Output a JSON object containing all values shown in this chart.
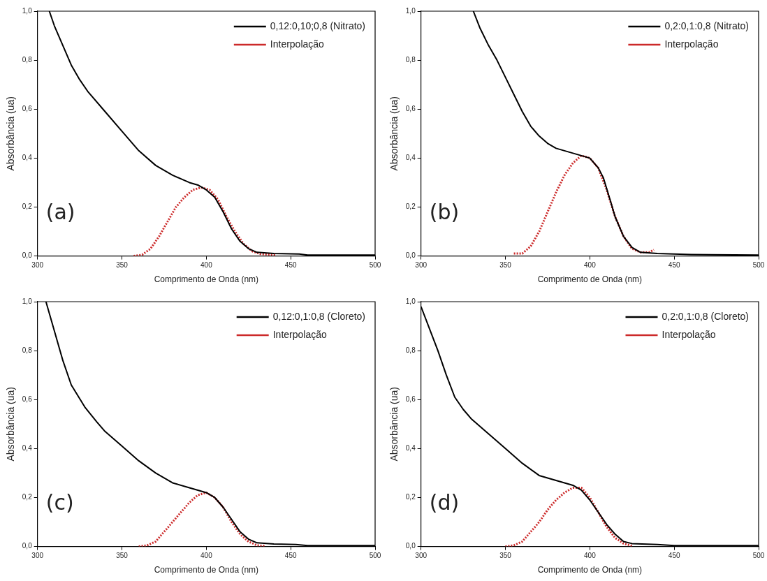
{
  "chart_data": [
    {
      "type": "line",
      "xlabel": "Comprimento de Onda (nm)",
      "ylabel": "Absorbância (ua)",
      "annotations": [
        "(a)"
      ],
      "xlim": [
        300,
        500
      ],
      "xticks": [
        300,
        350,
        400,
        450,
        500
      ],
      "ylim": [
        0,
        1
      ],
      "yticks": [
        {
          "value": 0,
          "label": "0,0"
        },
        {
          "value": 0.2,
          "label": "0,2"
        },
        {
          "value": 0.4,
          "label": "0,4"
        },
        {
          "value": 0.6,
          "label": "0,6"
        },
        {
          "value": 0.8,
          "label": "0,8"
        },
        {
          "value": 1,
          "label": "1,0"
        }
      ],
      "legend": "top right",
      "grid": false,
      "marker": "none",
      "series": [
        {
          "name": "0,12:0,10;0,8 (Nitrato)",
          "color": "#000000",
          "line_style": "solid",
          "x": [
            307,
            310,
            315,
            320,
            325,
            330,
            340,
            350,
            360,
            370,
            380,
            390,
            395,
            400,
            405,
            410,
            415,
            420,
            425,
            430,
            440,
            455,
            460,
            500
          ],
          "values": [
            1.0,
            0.94,
            0.86,
            0.78,
            0.72,
            0.67,
            0.59,
            0.51,
            0.43,
            0.37,
            0.33,
            0.3,
            0.29,
            0.27,
            0.24,
            0.18,
            0.11,
            0.06,
            0.03,
            0.015,
            0.01,
            0.008,
            0.004,
            0.004
          ]
        },
        {
          "name": "Interpolação",
          "color": "#cc2a2a",
          "line_style": "dotted",
          "x": [
            357,
            362,
            367,
            372,
            377,
            382,
            387,
            392,
            397,
            402,
            407,
            412,
            417,
            422,
            427,
            432,
            441
          ],
          "values": [
            0,
            0.005,
            0.03,
            0.08,
            0.14,
            0.2,
            0.24,
            0.27,
            0.28,
            0.27,
            0.23,
            0.16,
            0.1,
            0.05,
            0.02,
            0.008,
            0.005
          ]
        }
      ]
    },
    {
      "type": "line",
      "xlabel": "Comprimento de Onda (nm)",
      "ylabel": "Absorbância (ua)",
      "annotations": [
        "(b)"
      ],
      "xlim": [
        300,
        500
      ],
      "xticks": [
        300,
        350,
        400,
        450,
        500
      ],
      "ylim": [
        0,
        1
      ],
      "yticks": [
        {
          "value": 0,
          "label": "0,0"
        },
        {
          "value": 0.2,
          "label": "0,2"
        },
        {
          "value": 0.4,
          "label": "0,4"
        },
        {
          "value": 0.6,
          "label": "0,6"
        },
        {
          "value": 0.8,
          "label": "0,8"
        },
        {
          "value": 1,
          "label": "1,0"
        }
      ],
      "legend": "top right",
      "grid": false,
      "marker": "none",
      "series": [
        {
          "name": "0,2:0,1:0,8 (Nitrato)",
          "color": "#000000",
          "line_style": "solid",
          "x": [
            331,
            335,
            340,
            345,
            350,
            355,
            360,
            365,
            370,
            375,
            380,
            390,
            395,
            400,
            405,
            408,
            412,
            415,
            420,
            425,
            430,
            440,
            460,
            500
          ],
          "values": [
            1.0,
            0.93,
            0.86,
            0.8,
            0.73,
            0.66,
            0.59,
            0.53,
            0.49,
            0.46,
            0.44,
            0.42,
            0.41,
            0.4,
            0.36,
            0.32,
            0.23,
            0.16,
            0.08,
            0.035,
            0.015,
            0.01,
            0.006,
            0.004
          ]
        },
        {
          "name": "Interpolação",
          "color": "#cc2a2a",
          "line_style": "dotted",
          "x": [
            355,
            360,
            365,
            370,
            375,
            380,
            385,
            390,
            395,
            400,
            405,
            410,
            415,
            420,
            425,
            430,
            435,
            438
          ],
          "values": [
            0.01,
            0.01,
            0.04,
            0.1,
            0.18,
            0.26,
            0.33,
            0.38,
            0.41,
            0.4,
            0.36,
            0.27,
            0.16,
            0.08,
            0.03,
            0.015,
            0.015,
            0.025
          ]
        }
      ]
    },
    {
      "type": "line",
      "xlabel": "Comprimento de Onda (nm)",
      "ylabel": "Absorbância (ua)",
      "annotations": [
        "(c)"
      ],
      "xlim": [
        300,
        500
      ],
      "xticks": [
        300,
        350,
        400,
        450,
        500
      ],
      "ylim": [
        0,
        1
      ],
      "yticks": [
        {
          "value": 0,
          "label": "0,0"
        },
        {
          "value": 0.2,
          "label": "0,2"
        },
        {
          "value": 0.4,
          "label": "0,4"
        },
        {
          "value": 0.6,
          "label": "0,6"
        },
        {
          "value": 0.8,
          "label": "0,8"
        },
        {
          "value": 1,
          "label": "1,0"
        }
      ],
      "legend": "top right",
      "grid": false,
      "marker": "none",
      "series": [
        {
          "name": "0,12:0,1:0,8 (Cloreto)",
          "color": "#000000",
          "line_style": "solid",
          "x": [
            305,
            310,
            315,
            320,
            328,
            335,
            340,
            350,
            360,
            370,
            380,
            390,
            400,
            405,
            410,
            415,
            420,
            425,
            430,
            440,
            453,
            460,
            500
          ],
          "values": [
            1.0,
            0.88,
            0.76,
            0.66,
            0.57,
            0.51,
            0.47,
            0.41,
            0.35,
            0.3,
            0.26,
            0.24,
            0.22,
            0.2,
            0.16,
            0.11,
            0.06,
            0.03,
            0.015,
            0.01,
            0.008,
            0.004,
            0.004
          ]
        },
        {
          "name": "Interpolação",
          "color": "#cc2a2a",
          "line_style": "dotted",
          "x": [
            360,
            365,
            370,
            375,
            380,
            385,
            390,
            395,
            400,
            405,
            410,
            415,
            420,
            425,
            430,
            435
          ],
          "values": [
            0,
            0.005,
            0.02,
            0.06,
            0.1,
            0.14,
            0.18,
            0.21,
            0.22,
            0.2,
            0.16,
            0.1,
            0.05,
            0.02,
            0.005,
            0.002
          ]
        }
      ]
    },
    {
      "type": "line",
      "xlabel": "Comprimento de Onda (nm)",
      "ylabel": "Absorbância (ua)",
      "annotations": [
        "(d)"
      ],
      "xlim": [
        300,
        500
      ],
      "xticks": [
        300,
        350,
        400,
        450,
        500
      ],
      "ylim": [
        0,
        1
      ],
      "yticks": [
        {
          "value": 0,
          "label": "0,0"
        },
        {
          "value": 0.2,
          "label": "0,2"
        },
        {
          "value": 0.4,
          "label": "0,4"
        },
        {
          "value": 0.6,
          "label": "0,6"
        },
        {
          "value": 0.8,
          "label": "0,8"
        },
        {
          "value": 1,
          "label": "1,0"
        }
      ],
      "legend": "top right",
      "grid": false,
      "marker": "none",
      "series": [
        {
          "name": "0,2:0,1:0,8 (Cloreto)",
          "color": "#000000",
          "line_style": "solid",
          "x": [
            300,
            305,
            310,
            315,
            320,
            325,
            330,
            340,
            350,
            360,
            370,
            380,
            390,
            395,
            400,
            405,
            410,
            415,
            420,
            425,
            440,
            450,
            500
          ],
          "values": [
            0.98,
            0.89,
            0.8,
            0.7,
            0.61,
            0.56,
            0.52,
            0.46,
            0.4,
            0.34,
            0.29,
            0.27,
            0.25,
            0.23,
            0.19,
            0.14,
            0.09,
            0.05,
            0.02,
            0.012,
            0.008,
            0.004,
            0.004
          ]
        },
        {
          "name": "Interpolação",
          "color": "#cc2a2a",
          "line_style": "dotted",
          "x": [
            350,
            355,
            360,
            365,
            370,
            375,
            380,
            385,
            390,
            395,
            400,
            405,
            410,
            415,
            420,
            425
          ],
          "values": [
            0,
            0.005,
            0.02,
            0.06,
            0.1,
            0.15,
            0.19,
            0.22,
            0.24,
            0.24,
            0.2,
            0.14,
            0.08,
            0.035,
            0.012,
            0.003
          ]
        }
      ]
    }
  ]
}
